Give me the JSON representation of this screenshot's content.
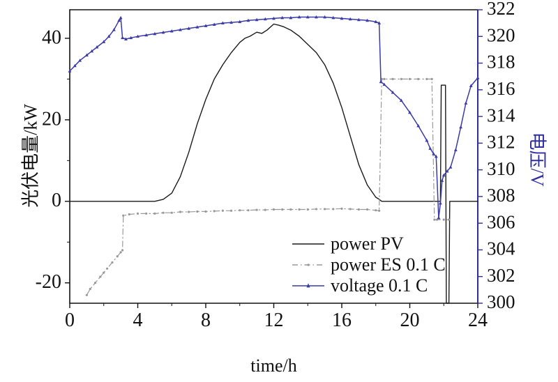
{
  "figure": {
    "xlabel": "time/h",
    "ylabel_left": "光伏电量/kW",
    "ylabel_right": "电压/V",
    "right_axis_color": "#2e2ea0",
    "left_axis_color": "#111111"
  },
  "legend": [
    {
      "label": "power PV",
      "color": "#1a1a1a",
      "dash": "",
      "marker": "none"
    },
    {
      "label": "power ES 0.1 C",
      "color": "#999999",
      "dash": "8 4 1.5 4",
      "marker": "dot"
    },
    {
      "label": "voltage 0.1 C",
      "color": "#3a3aa8",
      "dash": "",
      "marker": "triangle"
    }
  ],
  "chart_data": {
    "type": "line",
    "title": "",
    "xlabel": "time/h",
    "ylabel_left": "光伏电量/kW",
    "ylabel_right": "电压/V",
    "xlim": [
      0,
      24
    ],
    "xticks": [
      0,
      4,
      8,
      12,
      16,
      20,
      24
    ],
    "x_minor_step": 2,
    "ylim_left": [
      -25,
      47
    ],
    "yticks_left": [
      -20,
      0,
      20,
      40
    ],
    "y_left_minor_step": 10,
    "ylim_right": [
      300,
      322
    ],
    "yticks_right": [
      300,
      302,
      304,
      306,
      308,
      310,
      312,
      314,
      316,
      318,
      320,
      322
    ],
    "grid": false,
    "legend_position": "inside lower-right",
    "series": [
      {
        "name": "power PV",
        "axis": "left",
        "color": "#1a1a1a",
        "style": "solid",
        "marker": "none",
        "width": 1.4,
        "x": [
          0,
          1,
          2,
          3,
          4,
          5,
          5.5,
          6,
          6.5,
          7,
          7.5,
          8,
          8.5,
          9,
          9.5,
          10,
          10.3,
          10.6,
          11,
          11.3,
          11.6,
          12,
          12.3,
          12.6,
          13,
          13.5,
          14,
          14.5,
          15,
          15.5,
          16,
          16.5,
          17,
          17.5,
          18,
          18.2,
          18.35,
          19,
          20,
          21,
          21.8,
          21.85,
          22.1,
          22.15,
          22.3,
          22.35,
          23,
          24
        ],
        "y": [
          0,
          0,
          0,
          0,
          0,
          0,
          0.5,
          2,
          6,
          12,
          19,
          25,
          30,
          33.5,
          36.5,
          39,
          40,
          40.5,
          41.5,
          41.2,
          42,
          43.5,
          43.2,
          42.8,
          42,
          40.5,
          38.5,
          36.5,
          33.5,
          29,
          23,
          16,
          9,
          4,
          1,
          0.5,
          0,
          0,
          0,
          0,
          0,
          28.5,
          28.5,
          -25,
          -25,
          0,
          0,
          0
        ]
      },
      {
        "name": "power ES 0.1 C",
        "axis": "left",
        "color": "#999999",
        "style": "dashdot",
        "marker": "dot",
        "width": 1.2,
        "x": [
          1,
          1.2,
          1.5,
          1.8,
          2,
          2.2,
          2.5,
          2.8,
          3,
          3.1,
          3.15,
          3.5,
          4,
          4.5,
          5,
          5.5,
          6,
          6.5,
          7,
          7.5,
          8,
          8.5,
          9,
          9.5,
          10,
          10.5,
          11,
          11.5,
          12,
          12.5,
          13,
          13.5,
          14,
          14.5,
          15,
          15.5,
          16,
          16.5,
          17,
          17.5,
          18,
          18.2,
          18.35,
          18.5,
          19,
          19.5,
          20,
          20.5,
          21,
          21.3,
          21.45,
          21.6,
          22,
          22.3
        ],
        "y": [
          -23,
          -21.5,
          -20,
          -18.5,
          -17.5,
          -16.5,
          -15,
          -13.5,
          -12.5,
          -12,
          -3.5,
          -3.2,
          -3,
          -3,
          -3,
          -2.8,
          -2.8,
          -2.6,
          -2.6,
          -2.5,
          -2.5,
          -2.4,
          -2.3,
          -2.3,
          -2.2,
          -2.2,
          -2.1,
          -2.1,
          -2,
          -2,
          -2,
          -2,
          -2,
          -1.9,
          -1.9,
          -1.9,
          -1.8,
          -1.9,
          -2,
          -2,
          -2.2,
          -2.3,
          30,
          30,
          30,
          30,
          30,
          30,
          30,
          30,
          -4.5,
          -4.5,
          -4.5,
          -4.5
        ]
      },
      {
        "name": "voltage 0.1 C",
        "axis": "right",
        "color": "#3a3aa8",
        "style": "solid",
        "marker": "triangle",
        "width": 1.5,
        "x": [
          0,
          0.3,
          0.6,
          1,
          1.3,
          1.6,
          2,
          2.3,
          2.6,
          2.9,
          3.0,
          3.1,
          3.3,
          3.6,
          4,
          4.5,
          5,
          5.5,
          6,
          6.5,
          7,
          7.5,
          8,
          8.5,
          9,
          9.5,
          10,
          10.5,
          11,
          11.5,
          12,
          12.5,
          13,
          13.5,
          14,
          14.5,
          15,
          15.5,
          16,
          16.5,
          17,
          17.5,
          18,
          18.2,
          18.3,
          18.5,
          19,
          19.5,
          20,
          20.5,
          21,
          21.2,
          21.4,
          21.55,
          21.7,
          21.8,
          21.9,
          22,
          22.2,
          22.4,
          22.7,
          23,
          23.3,
          23.6,
          24
        ],
        "y": [
          317.4,
          317.8,
          318.2,
          318.6,
          318.9,
          319.2,
          319.6,
          320,
          320.5,
          321.2,
          321.4,
          319.9,
          319.8,
          319.9,
          320.0,
          320.1,
          320.2,
          320.3,
          320.4,
          320.5,
          320.6,
          320.7,
          320.8,
          320.9,
          321.0,
          321.05,
          321.1,
          321.2,
          321.25,
          321.3,
          321.35,
          321.4,
          321.4,
          321.45,
          321.45,
          321.45,
          321.45,
          321.4,
          321.35,
          321.3,
          321.25,
          321.2,
          321.1,
          321.0,
          316.6,
          316.4,
          315.8,
          315.2,
          314.3,
          313.3,
          312.2,
          311.6,
          311.2,
          311.0,
          306.4,
          307.5,
          309.2,
          309.6,
          309.9,
          310.2,
          311.5,
          313.2,
          315.0,
          316.3,
          316.9
        ]
      }
    ]
  }
}
